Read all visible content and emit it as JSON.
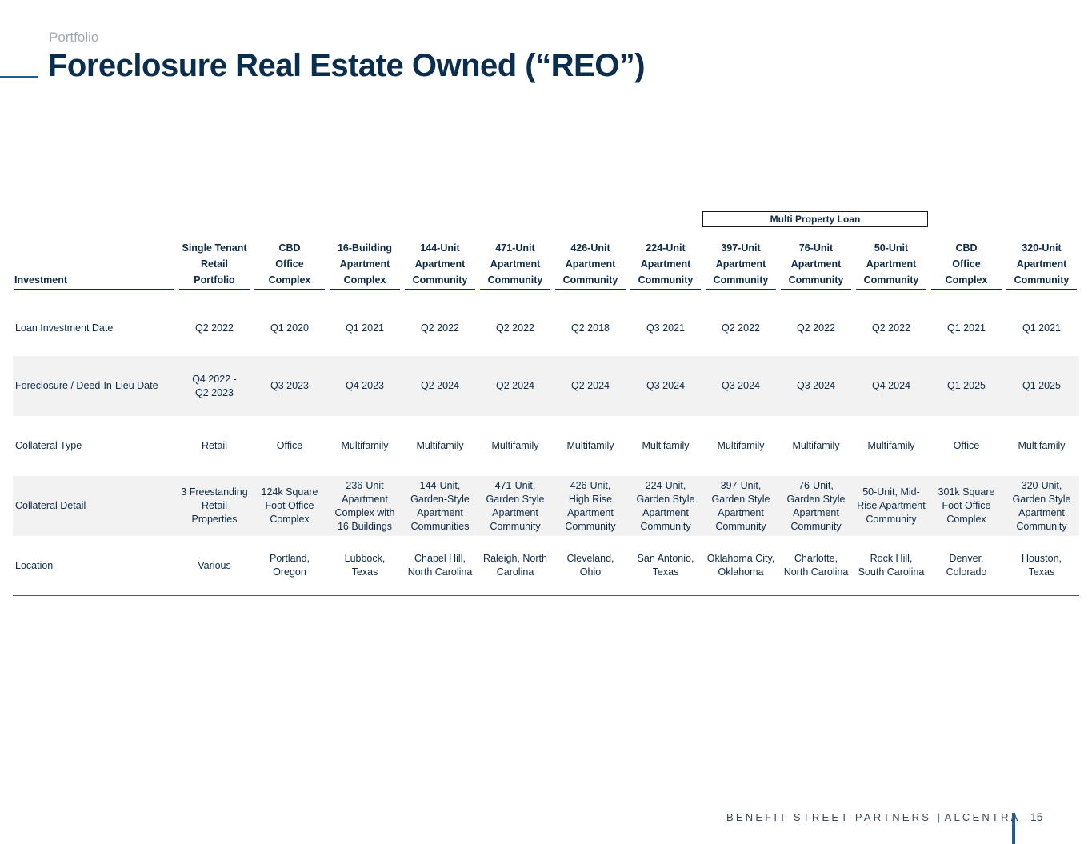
{
  "header": {
    "section_label": "Portfolio",
    "title": "Foreclosure Real Estate Owned (“REO”)"
  },
  "group_label": "Multi Property Loan",
  "table": {
    "columns": [
      "Investment",
      "Single Tenant\nRetail Portfolio",
      "CBD\nOffice Complex",
      "16-Building\nApartment\nComplex",
      "144-Unit\nApartment\nCommunity",
      "471-Unit\nApartment\nCommunity",
      "426-Unit\nApartment\nCommunity",
      "224-Unit\nApartment\nCommunity",
      "397-Unit\nApartment\nCommunity",
      "76-Unit\nApartment\nCommunity",
      "50-Unit\nApartment\nCommunity",
      "CBD\nOffice Complex",
      "320-Unit\nApartment\nCommunity"
    ],
    "rows": [
      {
        "label": "Loan Investment Date",
        "cells": [
          "Q2 2022",
          "Q1 2020",
          "Q1 2021",
          "Q2 2022",
          "Q2 2022",
          "Q2 2018",
          "Q3 2021",
          "Q2 2022",
          "Q2 2022",
          "Q2 2022",
          "Q1 2021",
          "Q1 2021"
        ]
      },
      {
        "label": "Foreclosure / Deed-In-Lieu Date",
        "cells": [
          "Q4 2022 -\nQ2 2023",
          "Q3 2023",
          "Q4 2023",
          "Q2 2024",
          "Q2 2024",
          "Q2 2024",
          "Q3 2024",
          "Q3 2024",
          "Q3 2024",
          "Q4 2024",
          "Q1 2025",
          "Q1 2025"
        ]
      },
      {
        "label": "Collateral Type",
        "cells": [
          "Retail",
          "Office",
          "Multifamily",
          "Multifamily",
          "Multifamily",
          "Multifamily",
          "Multifamily",
          "Multifamily",
          "Multifamily",
          "Multifamily",
          "Office",
          "Multifamily"
        ]
      },
      {
        "label": "Collateral Detail",
        "cells": [
          "3 Freestanding\nRetail\nProperties",
          "124k Square\nFoot Office\nComplex",
          "236-Unit\nApartment\nComplex with\n16 Buildings",
          "144-Unit,\nGarden-Style\nApartment\nCommunities",
          "471-Unit,\nGarden Style\nApartment\nCommunity",
          "426-Unit,\nHigh Rise\nApartment\nCommunity",
          "224-Unit,\nGarden Style\nApartment\nCommunity",
          "397-Unit,\nGarden Style\nApartment\nCommunity",
          "76-Unit,\nGarden Style\nApartment\nCommunity",
          "50-Unit, Mid-\nRise Apartment\nCommunity",
          "301k Square\nFoot Office\nComplex",
          "320-Unit,\nGarden Style\nApartment\nCommunity"
        ]
      },
      {
        "label": "Location",
        "cells": [
          "Various",
          "Portland,\nOregon",
          "Lubbock,\nTexas",
          "Chapel Hill,\nNorth Carolina",
          "Raleigh, North\nCarolina",
          "Cleveland,\nOhio",
          "San Antonio,\nTexas",
          "Oklahoma City,\nOklahoma",
          "Charlotte,\nNorth Carolina",
          "Rock Hill,\nSouth Carolina",
          "Denver,\nColorado",
          "Houston,\nTexas"
        ]
      }
    ]
  },
  "footer": {
    "brand_left": "BENEFIT STREET PARTNERS",
    "brand_sep": "|",
    "brand_right": "ALCENTRA",
    "page_number": "15"
  },
  "colors": {
    "title": "#0b2d4e",
    "accent": "#1f5f8f",
    "row_shade": "#f2f2f2"
  }
}
